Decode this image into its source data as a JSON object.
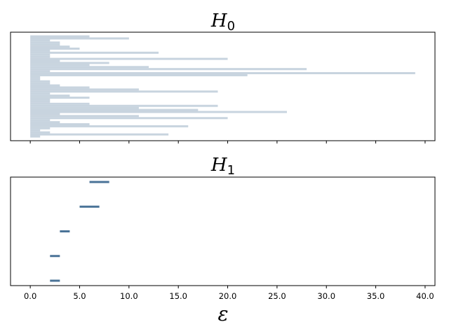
{
  "chart_data": [
    {
      "type": "barcode",
      "title": "H",
      "title_sub": "0",
      "color": "#c8d4df",
      "xlim": [
        -2,
        41
      ],
      "y_ticks_visible": false,
      "x_tick_labels_visible": false,
      "bars": [
        [
          0,
          6
        ],
        [
          0,
          10
        ],
        [
          0,
          2
        ],
        [
          0,
          3
        ],
        [
          0,
          3
        ],
        [
          0,
          4
        ],
        [
          0,
          5
        ],
        [
          0,
          2
        ],
        [
          0,
          13
        ],
        [
          0,
          2
        ],
        [
          0,
          2
        ],
        [
          0,
          20
        ],
        [
          0,
          3
        ],
        [
          0,
          8
        ],
        [
          0,
          6
        ],
        [
          0,
          12
        ],
        [
          0,
          28
        ],
        [
          0,
          2
        ],
        [
          0,
          39
        ],
        [
          0,
          22
        ],
        [
          0,
          1
        ],
        [
          0,
          1
        ],
        [
          0,
          2
        ],
        [
          0,
          2
        ],
        [
          0,
          3
        ],
        [
          0,
          6
        ],
        [
          0,
          11
        ],
        [
          0,
          19
        ],
        [
          0,
          2
        ],
        [
          0,
          4
        ],
        [
          0,
          6
        ],
        [
          0,
          2
        ],
        [
          0,
          2
        ],
        [
          0,
          6
        ],
        [
          0,
          19
        ],
        [
          0,
          11
        ],
        [
          0,
          17
        ],
        [
          0,
          26
        ],
        [
          0,
          3
        ],
        [
          0,
          11
        ],
        [
          0,
          20
        ],
        [
          0,
          2
        ],
        [
          0,
          3
        ],
        [
          0,
          6
        ],
        [
          0,
          16
        ],
        [
          0,
          2
        ],
        [
          0,
          1
        ],
        [
          0,
          2
        ],
        [
          0,
          14
        ],
        [
          0,
          1
        ]
      ]
    },
    {
      "type": "barcode",
      "title": "H",
      "title_sub": "1",
      "color": "#4a7397",
      "xlim": [
        -2,
        41
      ],
      "xlabel": "ε",
      "y_ticks_visible": false,
      "x_ticks": [
        "0.0",
        "5.0",
        "10.0",
        "15.0",
        "20.0",
        "25.0",
        "30.0",
        "35.0",
        "40.0"
      ],
      "bars": [
        [
          6.0,
          8.0
        ],
        [
          5.0,
          7.0
        ],
        [
          3.0,
          4.0
        ],
        [
          2.0,
          3.0
        ],
        [
          2.0,
          3.0
        ]
      ]
    }
  ]
}
